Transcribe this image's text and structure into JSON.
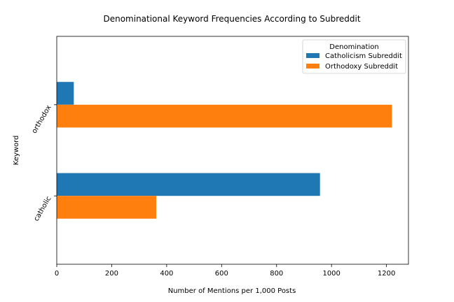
{
  "chart_data": {
    "type": "bar",
    "orientation": "horizontal",
    "title": "Denominational Keyword Frequencies According to Subreddit",
    "xlabel": "Number of Mentions per 1,000 Posts",
    "ylabel": "Keyword",
    "categories": [
      "catholic",
      "orthodox"
    ],
    "series": [
      {
        "name": "Catholicism Subreddit",
        "color": "#1f77b4",
        "values": [
          958,
          62
        ]
      },
      {
        "name": "Orthodoxy Subreddit",
        "color": "#ff7f0e",
        "values": [
          362,
          1220
        ]
      }
    ],
    "xlim": [
      0,
      1280
    ],
    "xticks": [
      0,
      200,
      400,
      600,
      800,
      1000,
      1200
    ],
    "grid": false,
    "legend": {
      "title": "Denomination",
      "placement": "top-right"
    }
  }
}
